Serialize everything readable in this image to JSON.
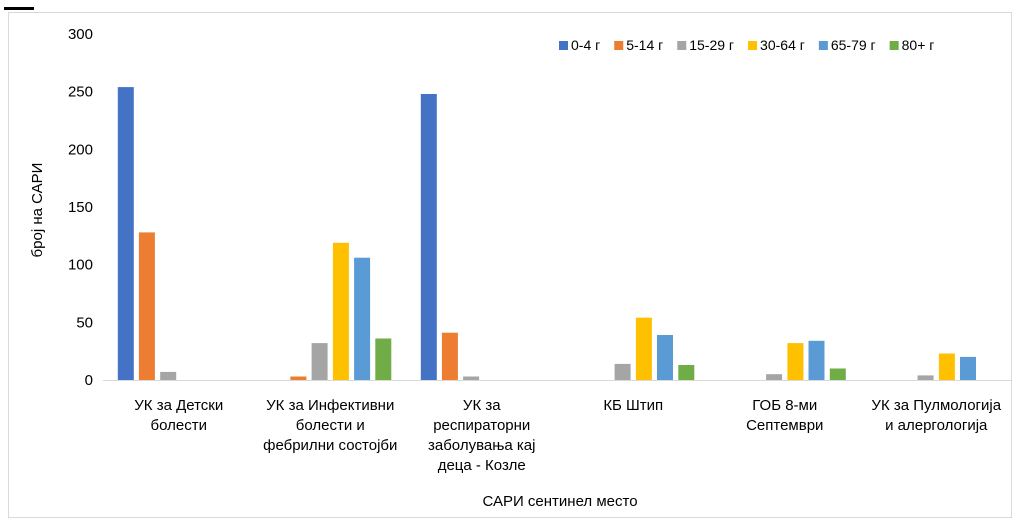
{
  "chart_data": {
    "type": "bar",
    "xlabel": "САРИ сентинел место",
    "ylabel": "број на САРИ",
    "ylim": [
      0,
      300
    ],
    "yticks": [
      0,
      50,
      100,
      150,
      200,
      250,
      300
    ],
    "grid": false,
    "legend_position": "top-right",
    "categories": [
      [
        "УК за Детски",
        "болести"
      ],
      [
        "УК за Инфективни",
        "болести и",
        "фебрилни состојби"
      ],
      [
        "УК за",
        "респираторни",
        "заболувања кај",
        "деца - Козле"
      ],
      [
        "КБ Штип"
      ],
      [
        "ГОБ 8-ми",
        "Септември"
      ],
      [
        "УК за Пулмологија",
        "и алергологија"
      ]
    ],
    "series": [
      {
        "name": "0-4 г",
        "color": "#4472C4",
        "values": [
          254,
          0,
          248,
          0,
          0,
          0
        ]
      },
      {
        "name": "5-14 г",
        "color": "#ED7D31",
        "values": [
          128,
          3,
          41,
          0,
          0,
          0
        ]
      },
      {
        "name": "15-29 г",
        "color": "#A5A5A5",
        "values": [
          7,
          32,
          3,
          14,
          5,
          4
        ]
      },
      {
        "name": "30-64 г",
        "color": "#FFC000",
        "values": [
          0,
          119,
          0,
          54,
          32,
          23
        ]
      },
      {
        "name": "65-79 г",
        "color": "#5B9BD5",
        "values": [
          0,
          106,
          0,
          39,
          34,
          20
        ]
      },
      {
        "name": "80+ г",
        "color": "#70AD47",
        "values": [
          0,
          36,
          0,
          13,
          10,
          0
        ]
      }
    ]
  }
}
